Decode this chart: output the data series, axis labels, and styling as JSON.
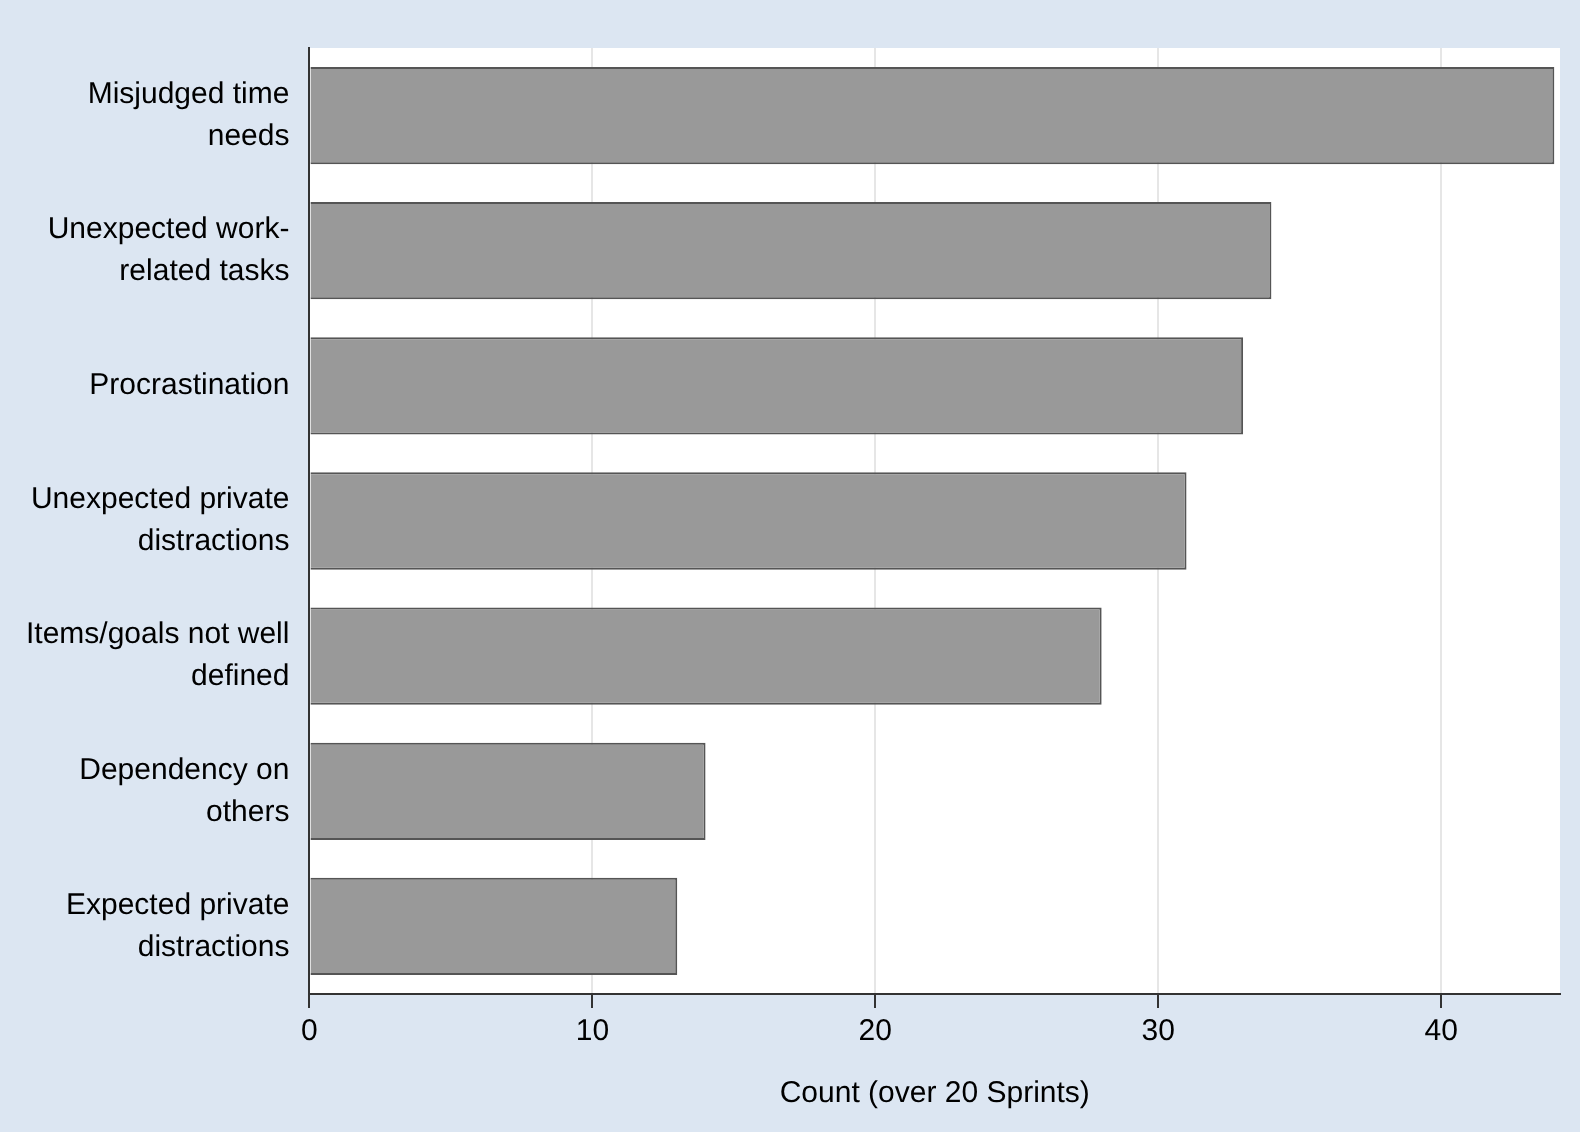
{
  "chart_data": {
    "type": "bar",
    "orientation": "horizontal",
    "xlabel": "Count (over 20 Sprints)",
    "categories": [
      "Misjudged time needs",
      "Unexpected work-related tasks",
      "Procrastination",
      "Unexpected private distractions",
      "Items/goals not well defined",
      "Dependency on others",
      "Expected private distractions"
    ],
    "values": [
      44,
      34,
      33,
      31,
      28,
      14,
      13
    ],
    "color": "#999999",
    "xlim": [
      0,
      44.2
    ],
    "xticks": [
      0,
      10,
      20,
      30,
      40
    ],
    "grid": "x",
    "legend": false
  }
}
